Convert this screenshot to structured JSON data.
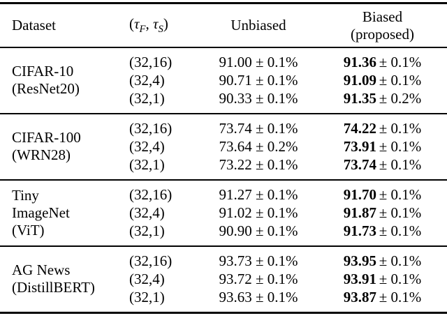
{
  "table": {
    "header": {
      "dataset": "Dataset",
      "tau": {
        "open": "(",
        "tau": "τ",
        "sub_f": "F",
        "sep": ", ",
        "sub_s": "S",
        "close": ")"
      },
      "unbiased": "Unbiased",
      "biased_line1": "Biased",
      "biased_line2": "(proposed)"
    },
    "groups": [
      {
        "name": [
          "CIFAR-10",
          "(ResNet20)"
        ],
        "rows": [
          {
            "tau": "(32,16)",
            "unbiased": "91.00 ± 0.1%",
            "biased": "91.36",
            "biased_pm": "± 0.1%"
          },
          {
            "tau": "(32,4)",
            "unbiased": "90.71 ± 0.1%",
            "biased": "91.09",
            "biased_pm": "± 0.1%"
          },
          {
            "tau": "(32,1)",
            "unbiased": "90.33 ± 0.1%",
            "biased": "91.35",
            "biased_pm": "± 0.2%"
          }
        ]
      },
      {
        "name": [
          "CIFAR-100",
          "(WRN28)"
        ],
        "rows": [
          {
            "tau": "(32,16)",
            "unbiased": "73.74 ± 0.1%",
            "biased": "74.22",
            "biased_pm": "± 0.1%"
          },
          {
            "tau": "(32,4)",
            "unbiased": "73.64 ± 0.2%",
            "biased": "73.91",
            "biased_pm": "± 0.1%"
          },
          {
            "tau": "(32,1)",
            "unbiased": "73.22 ± 0.1%",
            "biased": "73.74",
            "biased_pm": "± 0.1%"
          }
        ]
      },
      {
        "name": [
          "Tiny",
          "ImageNet",
          "(ViT)"
        ],
        "rows": [
          {
            "tau": "(32,16)",
            "unbiased": "91.27 ± 0.1%",
            "biased": "91.70",
            "biased_pm": "± 0.1%"
          },
          {
            "tau": "(32,4)",
            "unbiased": "91.02 ± 0.1%",
            "biased": "91.87",
            "biased_pm": "± 0.1%"
          },
          {
            "tau": "(32,1)",
            "unbiased": "90.90 ± 0.1%",
            "biased": "91.73",
            "biased_pm": "± 0.1%"
          }
        ]
      },
      {
        "name": [
          "AG News",
          "(DistillBERT)"
        ],
        "rows": [
          {
            "tau": "(32,16)",
            "unbiased": "93.73 ± 0.1%",
            "biased": "93.95",
            "biased_pm": "± 0.1%"
          },
          {
            "tau": "(32,4)",
            "unbiased": "93.72 ± 0.1%",
            "biased": "93.91",
            "biased_pm": "± 0.1%"
          },
          {
            "tau": "(32,1)",
            "unbiased": "93.63 ± 0.1%",
            "biased": "93.87",
            "biased_pm": "± 0.1%"
          }
        ]
      }
    ]
  },
  "colors": {
    "background": "#ffffff",
    "text": "#000000",
    "rule": "#000000"
  }
}
